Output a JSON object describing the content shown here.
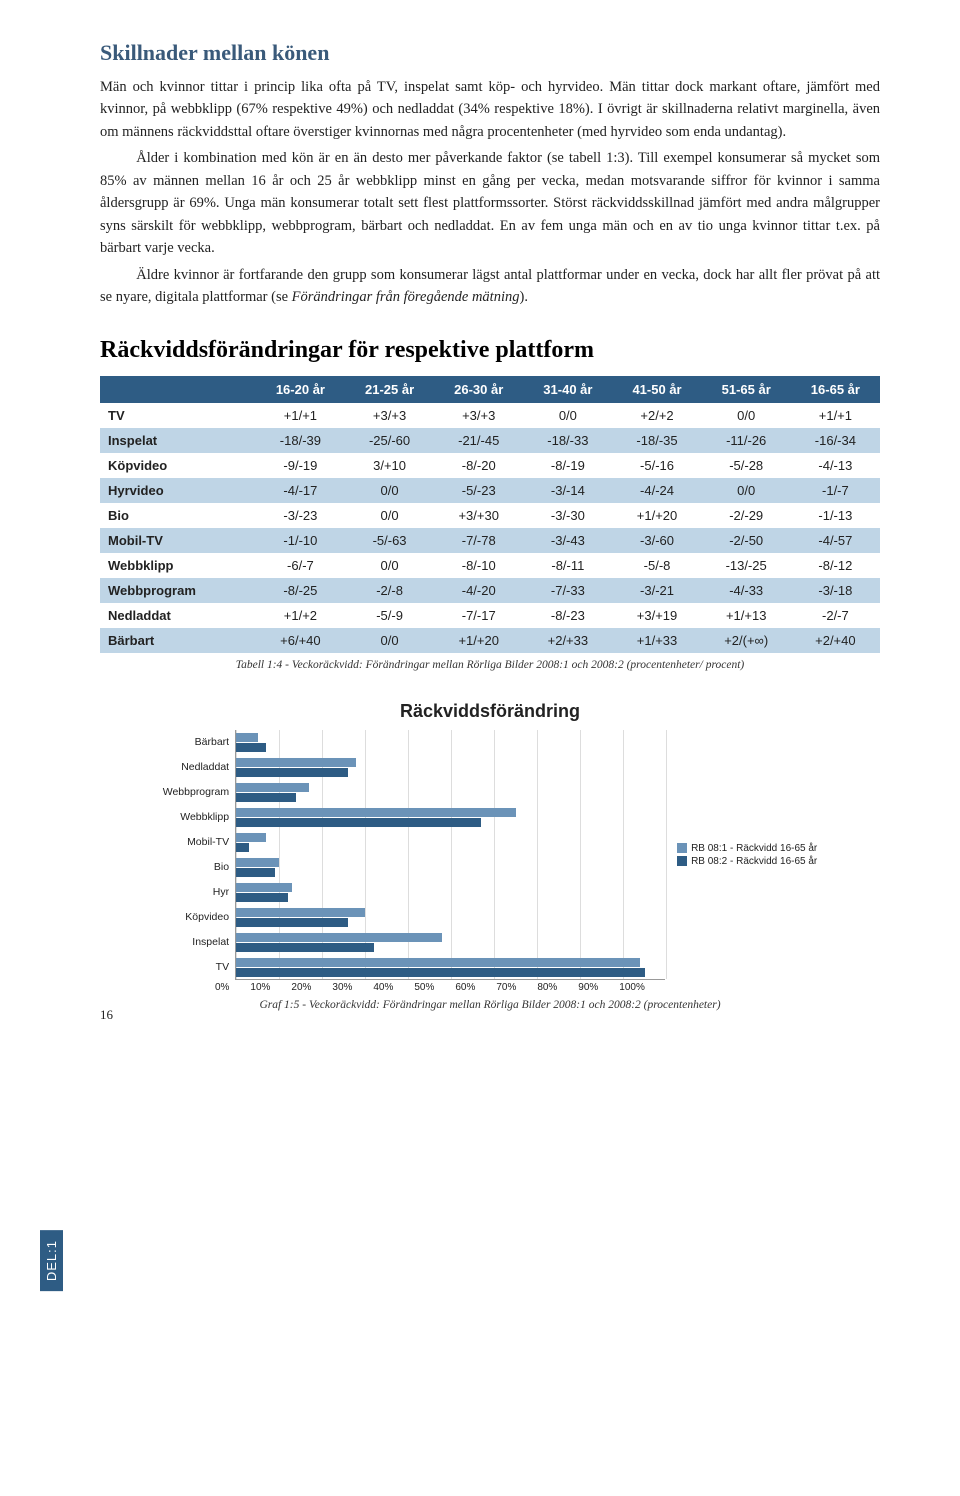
{
  "section_heading": "Skillnader mellan könen",
  "para1": "Män och kvinnor tittar i princip lika ofta på TV, inspelat samt köp- och hyrvideo. Män tittar dock markant oftare, jämfört med kvinnor, på webbklipp (67% respektive 49%) och nedladdat (34% respektive 18%). I övrigt är skillnaderna relativt marginella, även om männens räckviddsttal oftare överstiger kvinnornas med några procentenheter (med hyrvideo som enda undantag).",
  "para2": "Ålder i kombination med kön är en än desto mer påverkande faktor (se tabell 1:3). Till exempel konsumerar så mycket som 85% av männen mellan 16 år och 25 år webbklipp minst en gång per vecka, medan motsvarande siffror för kvinnor i samma åldersgrupp är 69%. Unga män konsumerar totalt sett flest plattformssorter. Störst räckviddsskillnad jämfört med andra målgrupper syns särskilt för webbklipp, webbprogram, bärbart och nedladdat. En av fem unga män och en av tio unga kvinnor tittar t.ex. på bärbart varje vecka.",
  "para3a": "Äldre kvinnor är fortfarande den grupp som konsumerar lägst antal plattformar under en vecka, dock har allt fler prövat på att se nyare, digitala plattformar (se ",
  "para3b": "Förändringar från föregående mätning",
  "para3c": ").",
  "platform_heading": "Räckviddsförändringar för respektive plattform",
  "table": {
    "columns": [
      "",
      "16-20 år",
      "21-25 år",
      "26-30 år",
      "31-40 år",
      "41-50 år",
      "51-65 år",
      "16-65 år"
    ],
    "rows": [
      {
        "label": "TV",
        "shade": false,
        "vals": [
          "+1/+1",
          "+3/+3",
          "+3/+3",
          "0/0",
          "+2/+2",
          "0/0",
          "+1/+1"
        ]
      },
      {
        "label": "Inspelat",
        "shade": true,
        "vals": [
          "-18/-39",
          "-25/-60",
          "-21/-45",
          "-18/-33",
          "-18/-35",
          "-11/-26",
          "-16/-34"
        ]
      },
      {
        "label": "Köpvideo",
        "shade": false,
        "vals": [
          "-9/-19",
          "3/+10",
          "-8/-20",
          "-8/-19",
          "-5/-16",
          "-5/-28",
          "-4/-13"
        ]
      },
      {
        "label": "Hyrvideo",
        "shade": true,
        "vals": [
          "-4/-17",
          "0/0",
          "-5/-23",
          "-3/-14",
          "-4/-24",
          "0/0",
          "-1/-7"
        ]
      },
      {
        "label": "Bio",
        "shade": false,
        "vals": [
          "-3/-23",
          "0/0",
          "+3/+30",
          "-3/-30",
          "+1/+20",
          "-2/-29",
          "-1/-13"
        ]
      },
      {
        "label": "Mobil-TV",
        "shade": true,
        "vals": [
          "-1/-10",
          "-5/-63",
          "-7/-78",
          "-3/-43",
          "-3/-60",
          "-2/-50",
          "-4/-57"
        ]
      },
      {
        "label": "Webbklipp",
        "shade": false,
        "vals": [
          "-6/-7",
          "0/0",
          "-8/-10",
          "-8/-11",
          "-5/-8",
          "-13/-25",
          "-8/-12"
        ]
      },
      {
        "label": "Webbprogram",
        "shade": true,
        "vals": [
          "-8/-25",
          "-2/-8",
          "-4/-20",
          "-7/-33",
          "-3/-21",
          "-4/-33",
          "-3/-18"
        ]
      },
      {
        "label": "Nedladdat",
        "shade": false,
        "vals": [
          "+1/+2",
          "-5/-9",
          "-7/-17",
          "-8/-23",
          "+3/+19",
          "+1/+13",
          "-2/-7"
        ]
      },
      {
        "label": "Bärbart",
        "shade": true,
        "vals": [
          "+6/+40",
          "0/0",
          "+1/+20",
          "+2/+33",
          "+1/+33",
          "+2/(+∞)",
          "+2/+40"
        ]
      }
    ]
  },
  "table_caption": "Tabell 1:4 - Veckoräckvidd: Förändringar mellan Rörliga Bilder 2008:1 och 2008:2 (procentenheter/ procent)",
  "chart": {
    "title": "Räckviddsförändring",
    "categories": [
      "Bärbart",
      "Nedladdat",
      "Webbprogram",
      "Webbklipp",
      "Mobil-TV",
      "Bio",
      "Hyr",
      "Köpvideo",
      "Inspelat",
      "TV"
    ],
    "series": [
      {
        "name": "RB 08:1 - Räckvidd 16-65 år",
        "color": "#6b93b8",
        "vals": [
          5,
          28,
          17,
          65,
          7,
          10,
          13,
          30,
          48,
          94
        ]
      },
      {
        "name": "RB 08:2 - Räckvidd 16-65 år",
        "color": "#2e5c84",
        "vals": [
          7,
          26,
          14,
          57,
          3,
          9,
          12,
          26,
          32,
          95
        ]
      }
    ],
    "xmax": 100,
    "xticks": [
      "0%",
      "10%",
      "20%",
      "30%",
      "40%",
      "50%",
      "60%",
      "70%",
      "80%",
      "90%",
      "100%"
    ]
  },
  "chart_caption": "Graf 1:5 - Veckoräckvidd: Förändringar mellan Rörliga Bilder 2008:1 och 2008:2 (procentenheter)",
  "side_tab": "DEL:1",
  "page_number": "16"
}
